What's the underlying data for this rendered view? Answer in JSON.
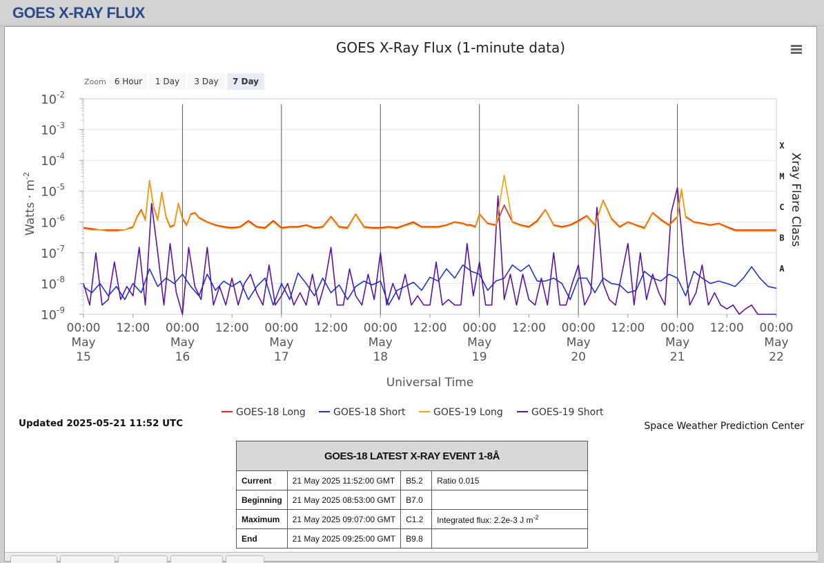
{
  "header": {
    "title": "GOES X-RAY FLUX"
  },
  "chart_data": {
    "type": "line",
    "title": "GOES X-Ray Flux (1-minute data)",
    "xlabel": "Universal Time",
    "ylabel": "Watts · m",
    "ylabel_sup": "-2",
    "y2label": "Xray Flare Class",
    "yscale": "log",
    "ylim": [
      1e-09,
      0.01
    ],
    "y_ticks": [
      {
        "base": "10",
        "exp": "-9"
      },
      {
        "base": "10",
        "exp": "-8"
      },
      {
        "base": "10",
        "exp": "-7"
      },
      {
        "base": "10",
        "exp": "-6"
      },
      {
        "base": "10",
        "exp": "-5"
      },
      {
        "base": "10",
        "exp": "-4"
      },
      {
        "base": "10",
        "exp": "-3"
      },
      {
        "base": "10",
        "exp": "-2"
      }
    ],
    "flare_classes": [
      "A",
      "B",
      "C",
      "M",
      "X"
    ],
    "xlim": [
      "2025-05-15 00:00",
      "2025-05-22 00:00"
    ],
    "x_ticks": [
      {
        "time": "00:00",
        "date": [
          "May",
          "15"
        ]
      },
      {
        "time": "12:00",
        "date": null
      },
      {
        "time": "00:00",
        "date": [
          "May",
          "16"
        ]
      },
      {
        "time": "12:00",
        "date": null
      },
      {
        "time": "00:00",
        "date": [
          "May",
          "17"
        ]
      },
      {
        "time": "12:00",
        "date": null
      },
      {
        "time": "00:00",
        "date": [
          "May",
          "18"
        ]
      },
      {
        "time": "12:00",
        "date": null
      },
      {
        "time": "00:00",
        "date": [
          "May",
          "19"
        ]
      },
      {
        "time": "12:00",
        "date": null
      },
      {
        "time": "00:00",
        "date": [
          "May",
          "20"
        ]
      },
      {
        "time": "12:00",
        "date": null
      },
      {
        "time": "00:00",
        "date": [
          "May",
          "21"
        ]
      },
      {
        "time": "12:00",
        "date": null
      },
      {
        "time": "00:00",
        "date": [
          "May",
          "22"
        ]
      }
    ],
    "zoom": {
      "label": "Zoom",
      "options": [
        "6 Hour",
        "1 Day",
        "3 Day",
        "7 Day"
      ],
      "selected": "7 Day"
    },
    "x_unit": "hours since 2025-05-15 00:00 UTC",
    "series": [
      {
        "name": "GOES-18 Long",
        "color": "#e8251b",
        "x": [
          0,
          2,
          4,
          6,
          8,
          10,
          12,
          13,
          14,
          15,
          16,
          17,
          18,
          19,
          20,
          21,
          22,
          23,
          24,
          25,
          26,
          27,
          28,
          30,
          32,
          34,
          36,
          38,
          40,
          42,
          44,
          46,
          48,
          50,
          52,
          54,
          56,
          58,
          60,
          62,
          64,
          66,
          68,
          70,
          72,
          74,
          76,
          78,
          80,
          82,
          84,
          86,
          88,
          90,
          92,
          93,
          94,
          95,
          96,
          98,
          100,
          102,
          104,
          106,
          108,
          110,
          112,
          114,
          116,
          118,
          120,
          122,
          124,
          126,
          128,
          130,
          132,
          134,
          136,
          138,
          140,
          142,
          144,
          145,
          146,
          148,
          150,
          152,
          154,
          156,
          158,
          160,
          162,
          164,
          166,
          168
        ],
        "y": [
          6.5e-07,
          6e-07,
          5.5e-07,
          5.5e-07,
          5.5e-07,
          5.5e-07,
          7e-07,
          1.5e-06,
          2.5e-06,
          1.2e-06,
          2.2e-05,
          3e-06,
          1.2e-06,
          9e-06,
          1.5e-06,
          7e-07,
          8e-07,
          4e-06,
          1.3e-06,
          8e-07,
          1.8e-06,
          2e-06,
          1.4e-06,
          1e-06,
          8e-07,
          7e-07,
          6.5e-07,
          7e-07,
          1.1e-06,
          7e-07,
          6.5e-07,
          1.1e-06,
          6.5e-07,
          7e-07,
          7e-07,
          8e-07,
          6.5e-07,
          7e-07,
          1.5e-06,
          7e-07,
          6.5e-07,
          1.8e-06,
          7e-07,
          6.5e-07,
          6.5e-07,
          7e-07,
          6.5e-07,
          8e-07,
          1e-06,
          7e-07,
          7e-07,
          7e-07,
          8e-07,
          1e-06,
          9e-07,
          8e-07,
          8e-07,
          7e-07,
          1.8e-06,
          9e-07,
          8e-07,
          3.5e-06,
          1e-06,
          8e-07,
          7e-07,
          1.1e-06,
          2.5e-06,
          8e-07,
          7e-07,
          8e-07,
          1.1e-06,
          1.6e-06,
          8e-07,
          5e-06,
          1.3e-06,
          7e-07,
          1e-06,
          8e-07,
          6.5e-07,
          2e-06,
          1.2e-06,
          8e-07,
          1.5e-06,
          1.1e-05,
          1.5e-06,
          1e-06,
          9e-07,
          8e-07,
          9e-07,
          7e-07,
          5.5e-07,
          5.5e-07,
          5.5e-07,
          5.5e-07,
          5.5e-07,
          5.5e-07
        ]
      },
      {
        "name": "GOES-18 Short",
        "color": "#1a34d8",
        "x": [
          0,
          2,
          4,
          6,
          8,
          10,
          12,
          14,
          16,
          18,
          20,
          22,
          24,
          26,
          28,
          30,
          32,
          34,
          36,
          38,
          40,
          42,
          44,
          46,
          48,
          50,
          52,
          54,
          56,
          58,
          60,
          62,
          64,
          66,
          68,
          70,
          72,
          74,
          76,
          78,
          80,
          82,
          84,
          86,
          88,
          90,
          92,
          94,
          96,
          98,
          100,
          102,
          104,
          106,
          108,
          110,
          112,
          114,
          116,
          118,
          120,
          122,
          124,
          126,
          128,
          130,
          132,
          134,
          136,
          138,
          140,
          142,
          144,
          146,
          148,
          150,
          152,
          154,
          156,
          158,
          160,
          162,
          164,
          166,
          168
        ],
        "y": [
          8e-09,
          5e-09,
          1e-08,
          4e-09,
          8e-09,
          3e-09,
          1e-08,
          5e-09,
          3e-08,
          8e-09,
          1.5e-08,
          1e-08,
          2e-08,
          8e-09,
          4e-09,
          2e-08,
          6e-09,
          1.2e-08,
          8e-09,
          1.2e-08,
          3e-09,
          8e-09,
          1.5e-08,
          2e-09,
          1e-08,
          3e-09,
          2.2e-08,
          1e-08,
          4e-09,
          1.5e-08,
          5e-09,
          9e-09,
          3e-09,
          8e-09,
          1.2e-08,
          9e-09,
          1.2e-08,
          2e-09,
          6e-09,
          8e-09,
          1.1e-08,
          6e-09,
          1.6e-08,
          1.2e-08,
          3e-08,
          1.5e-08,
          4e-08,
          2.5e-08,
          2e-08,
          6e-09,
          1.2e-08,
          1.5e-08,
          4e-08,
          2.5e-08,
          4e-08,
          1.2e-08,
          1.2e-08,
          1.5e-08,
          1e-08,
          3e-09,
          1.5e-08,
          1.5e-08,
          5e-09,
          1.5e-08,
          1e-08,
          9e-09,
          5e-09,
          6e-09,
          2.5e-08,
          1.5e-08,
          1.2e-08,
          2e-08,
          1.5e-08,
          4e-09,
          2.5e-08,
          1.5e-08,
          1e-08,
          1.2e-08,
          1e-08,
          8e-09,
          1.5e-08,
          3.5e-08,
          1.5e-08,
          8e-09,
          7e-09
        ]
      },
      {
        "name": "GOES-19 Long",
        "color": "#f5a300",
        "x": [
          0,
          2,
          4,
          6,
          8,
          10,
          12,
          13,
          14,
          15,
          16,
          17,
          18,
          19,
          20,
          21,
          22,
          23,
          24,
          25,
          26,
          27,
          28,
          30,
          32,
          34,
          36,
          38,
          40,
          42,
          44,
          46,
          48,
          50,
          52,
          54,
          56,
          58,
          60,
          62,
          64,
          66,
          68,
          70,
          72,
          74,
          76,
          78,
          80,
          82,
          84,
          86,
          88,
          90,
          92,
          93,
          94,
          95,
          96,
          98,
          100,
          102,
          104,
          106,
          108,
          110,
          112,
          114,
          116,
          118,
          120,
          122,
          124,
          126,
          128,
          130,
          132,
          134,
          136,
          138,
          140,
          142,
          144,
          145,
          146,
          148,
          150,
          152,
          154,
          156,
          158,
          160,
          162,
          164,
          166,
          168
        ],
        "y": [
          6e-07,
          5.5e-07,
          5.5e-07,
          5e-07,
          5e-07,
          5.5e-07,
          6.5e-07,
          1.4e-06,
          2.3e-06,
          1.1e-06,
          2.1e-05,
          2.8e-06,
          1.1e-06,
          8.5e-06,
          1.4e-06,
          6.5e-07,
          7.5e-07,
          3.8e-06,
          1.2e-06,
          7.5e-07,
          1.7e-06,
          1.9e-06,
          1.3e-06,
          9.5e-07,
          7.5e-07,
          6.5e-07,
          6e-07,
          6.5e-07,
          1e-06,
          6.5e-07,
          6e-07,
          1e-06,
          6e-07,
          6.5e-07,
          6.5e-07,
          7.5e-07,
          6e-07,
          6.5e-07,
          1.4e-06,
          6.5e-07,
          6e-07,
          1.7e-06,
          6.5e-07,
          6e-07,
          6e-07,
          6.5e-07,
          6e-07,
          7.5e-07,
          9e-07,
          6.5e-07,
          6.5e-07,
          6.5e-07,
          7.5e-07,
          9.5e-07,
          8.5e-07,
          7.5e-07,
          7.5e-07,
          6.5e-07,
          1.7e-06,
          8.5e-07,
          7.5e-07,
          3.3e-05,
          9.5e-07,
          7.5e-07,
          6.5e-07,
          1e-06,
          2.4e-06,
          7.5e-07,
          6.5e-07,
          7.5e-07,
          1e-06,
          1.5e-06,
          7.5e-07,
          4.8e-06,
          1.2e-06,
          6.5e-07,
          9.5e-07,
          7.5e-07,
          6e-07,
          1.9e-06,
          1.1e-06,
          7.5e-07,
          1.4e-06,
          1.2e-05,
          1.4e-06,
          9.5e-07,
          8.5e-07,
          7.5e-07,
          8.5e-07,
          6.5e-07,
          5e-07,
          5e-07,
          5e-07,
          5e-07,
          5e-07,
          5e-07
        ]
      },
      {
        "name": "GOES-19 Short",
        "color": "#5a0fa8",
        "x": [
          0,
          1.5,
          3,
          4.5,
          6,
          7.5,
          9,
          10.5,
          12,
          13.5,
          15,
          16.5,
          18,
          19.5,
          21,
          22.5,
          24,
          25.5,
          27,
          28.5,
          30,
          31.5,
          33,
          34.5,
          36,
          37.5,
          39,
          40.5,
          42,
          43.5,
          45,
          46.5,
          48,
          49.5,
          51,
          52.5,
          54,
          55.5,
          57,
          58.5,
          60,
          61.5,
          63,
          64.5,
          66,
          67.5,
          69,
          70.5,
          72,
          73.5,
          75,
          76.5,
          78,
          79.5,
          81,
          82.5,
          84,
          85.5,
          87,
          88.5,
          90,
          91.5,
          93,
          94.5,
          96,
          97.5,
          99,
          100.5,
          102,
          103.5,
          105,
          106.5,
          108,
          109.5,
          111,
          112.5,
          114,
          115.5,
          117,
          118.5,
          120,
          121.5,
          123,
          124.5,
          126,
          127.5,
          129,
          130.5,
          132,
          133.5,
          135,
          136.5,
          138,
          139.5,
          141,
          142.5,
          144,
          145.5,
          147,
          148.5,
          150,
          151.5,
          153,
          154.5,
          156,
          157.5,
          159,
          160.5,
          162,
          163.5,
          165,
          166.5,
          168
        ],
        "y": [
          1e-08,
          2e-09,
          1e-07,
          2e-09,
          3e-09,
          5e-08,
          3e-09,
          8e-09,
          4e-09,
          1.5e-07,
          2e-09,
          4e-06,
          1e-07,
          2e-09,
          2e-07,
          5e-09,
          1e-09,
          1.5e-07,
          8e-09,
          3e-09,
          1.5e-07,
          2e-09,
          8e-09,
          2e-09,
          1.5e-08,
          2e-09,
          1e-08,
          2e-08,
          5e-09,
          2e-09,
          4e-08,
          2e-09,
          4e-09,
          1e-08,
          2e-09,
          5e-09,
          2e-09,
          2e-08,
          2e-09,
          1e-08,
          1.5e-07,
          2e-09,
          2e-09,
          3e-08,
          4e-09,
          2e-09,
          2e-08,
          3e-09,
          1e-07,
          2e-09,
          1e-08,
          3e-09,
          2e-08,
          2e-09,
          4e-09,
          2e-09,
          2e-09,
          5e-08,
          2e-09,
          3e-09,
          2e-09,
          2e-09,
          2e-07,
          4e-09,
          5e-08,
          2e-09,
          2e-09,
          7e-06,
          3e-09,
          2e-08,
          2e-09,
          2e-08,
          3e-09,
          2e-09,
          1.5e-08,
          2e-09,
          1e-07,
          2e-09,
          2e-09,
          1e-08,
          4e-08,
          2e-09,
          5e-09,
          3e-06,
          1e-08,
          3e-09,
          2e-09,
          2e-08,
          2e-07,
          2e-09,
          1e-07,
          3e-09,
          2e-08,
          5e-09,
          2e-09,
          2e-06,
          1.3e-05,
          1e-07,
          2e-09,
          5e-09,
          4e-08,
          2e-09,
          5e-09,
          2e-09,
          1.5e-09,
          2e-09,
          1e-09,
          1.5e-09,
          2e-09,
          1e-09,
          1e-09,
          1e-09,
          1e-09
        ]
      }
    ]
  },
  "menu": {
    "icon": "hamburger-menu-icon"
  },
  "updated": "Updated 2025-05-21 11:52 UTC",
  "credit": "Space Weather Prediction Center",
  "event_table": {
    "title": "GOES-18 LATEST X-RAY EVENT 1-8Å",
    "rows": [
      {
        "label": "Current",
        "time": "21 May 2025 11:52:00 GMT",
        "cls": "B5.2",
        "note": "Ratio 0.015",
        "note_sup": ""
      },
      {
        "label": "Beginning",
        "time": "21 May 2025 08:53:00 GMT",
        "cls": "B7.0",
        "note": "",
        "note_sup": ""
      },
      {
        "label": "Maximum",
        "time": "21 May 2025 09:07:00 GMT",
        "cls": "C1.2",
        "note": "Integrated flux: 2.2e-3 J m",
        "note_sup": "-2"
      },
      {
        "label": "End",
        "time": "21 May 2025 09:25:00 GMT",
        "cls": "B9.8",
        "note": "",
        "note_sup": ""
      }
    ]
  }
}
